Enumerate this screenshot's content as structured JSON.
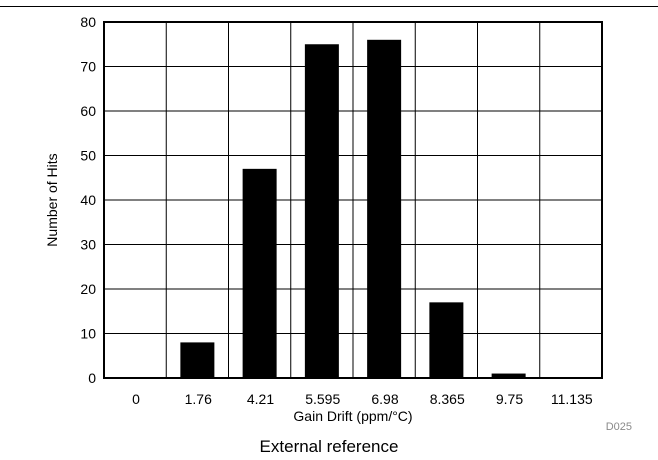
{
  "figure_id": "D025",
  "caption": "External reference",
  "chart_data": {
    "type": "bar",
    "categories": [
      "0",
      "1.76",
      "4.21",
      "5.595",
      "6.98",
      "8.365",
      "9.75",
      "11.135"
    ],
    "values": [
      0,
      8,
      47,
      75,
      76,
      17,
      1,
      0
    ],
    "title": "",
    "xlabel": "Gain Drift (ppm/°C)",
    "ylabel": "Number of Hits",
    "ylim": [
      0,
      80
    ],
    "yticks": [
      0,
      10,
      20,
      30,
      40,
      50,
      60,
      70,
      80
    ],
    "grid": true,
    "bar_color": "#000000"
  }
}
